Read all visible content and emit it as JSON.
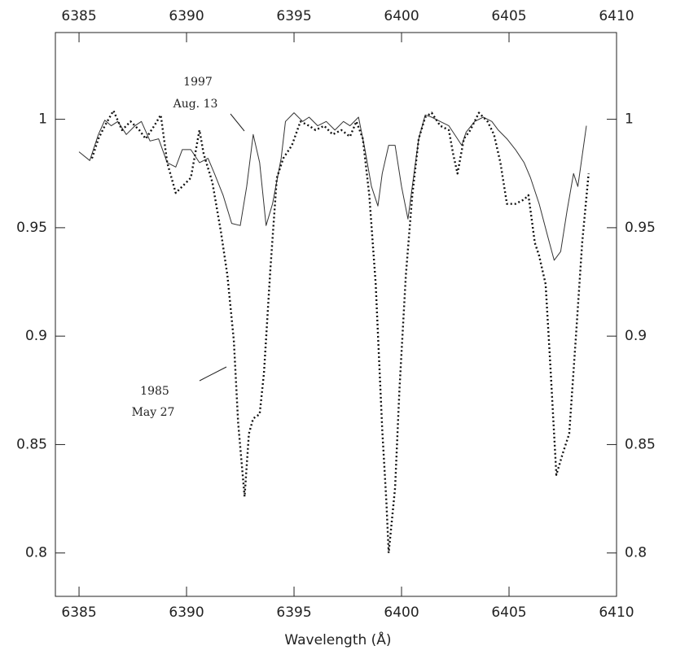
{
  "chart_data": {
    "type": "line",
    "xlabel": "Wavelength (Å)",
    "annotations": [
      "1997",
      "Aug. 13",
      "1985",
      "May 27"
    ],
    "xlim": [
      6383.9,
      6410
    ],
    "ylim": [
      0.78,
      1.04
    ],
    "xticks": [
      6385,
      6390,
      6395,
      6400,
      6405,
      6410
    ],
    "yticks": [
      0.8,
      0.85,
      0.9,
      0.95,
      1
    ],
    "series": [
      {
        "color": "#333333",
        "style": "solid",
        "x": [
          6385.0,
          6385.5,
          6385.9,
          6386.2,
          6386.5,
          6386.8,
          6387.2,
          6387.6,
          6387.9,
          6388.3,
          6388.7,
          6389.1,
          6389.5,
          6389.8,
          6390.2,
          6390.6,
          6391.0,
          6391.3,
          6391.7,
          6392.1,
          6392.5,
          6392.8,
          6393.1,
          6393.4,
          6393.7,
          6394.0,
          6394.4,
          6394.6,
          6395.0,
          6395.4,
          6395.7,
          6396.1,
          6396.5,
          6396.9,
          6397.3,
          6397.6,
          6398.0,
          6398.3,
          6398.6,
          6398.9,
          6399.1,
          6399.4,
          6399.7,
          6400.0,
          6400.3,
          6400.5,
          6400.8,
          6401.1,
          6401.4,
          6401.8,
          6402.2,
          6402.6,
          6402.8,
          6403.0,
          6403.4,
          6403.8,
          6404.2,
          6404.5,
          6404.9,
          6405.3,
          6405.7,
          6406.0,
          6406.4,
          6406.8,
          6407.1,
          6407.4,
          6407.7,
          6408.0,
          6408.2,
          6408.6
        ],
        "values": [
          0.985,
          0.981,
          0.993,
          0.9996,
          0.997,
          0.999,
          0.993,
          0.997,
          0.999,
          0.99,
          0.991,
          0.98,
          0.978,
          0.986,
          0.986,
          0.98,
          0.982,
          0.975,
          0.965,
          0.952,
          0.951,
          0.969,
          0.993,
          0.98,
          0.951,
          0.961,
          0.982,
          0.999,
          1.003,
          0.999,
          1.001,
          0.997,
          0.999,
          0.995,
          0.999,
          0.997,
          1.001,
          0.986,
          0.969,
          0.96,
          0.975,
          0.988,
          0.988,
          0.969,
          0.954,
          0.969,
          0.991,
          1.002,
          1.001,
          0.999,
          0.997,
          0.991,
          0.988,
          0.994,
          0.999,
          1.001,
          0.999,
          0.995,
          0.991,
          0.986,
          0.98,
          0.973,
          0.961,
          0.946,
          0.935,
          0.939,
          0.958,
          0.975,
          0.969,
          0.997
        ]
      },
      {
        "color": "#111111",
        "style": "dotted",
        "x": [
          6385.6,
          6385.9,
          6386.2,
          6386.6,
          6387.0,
          6387.4,
          6387.8,
          6388.1,
          6388.5,
          6388.8,
          6389.1,
          6389.5,
          6389.8,
          6390.2,
          6390.6,
          6390.8,
          6391.2,
          6391.6,
          6391.9,
          6392.2,
          6392.4,
          6392.7,
          6392.9,
          6393.1,
          6393.4,
          6393.6,
          6393.9,
          6394.2,
          6394.5,
          6394.9,
          6395.3,
          6395.7,
          6396.0,
          6396.4,
          6396.8,
          6397.2,
          6397.6,
          6397.9,
          6398.2,
          6398.5,
          6398.8,
          6399.1,
          6399.3,
          6399.4,
          6399.7,
          6399.9,
          6400.2,
          6400.5,
          6400.8,
          6401.1,
          6401.4,
          6401.8,
          6402.2,
          6402.4,
          6402.6,
          6402.9,
          6403.2,
          6403.6,
          6404.0,
          6404.3,
          6404.6,
          6404.9,
          6405.3,
          6405.7,
          6405.9,
          6406.2,
          6406.4,
          6406.7,
          6406.9,
          6407.2,
          6407.5,
          6407.8,
          6408.1,
          6408.4,
          6408.7
        ],
        "values": [
          0.982,
          0.991,
          0.997,
          1.004,
          0.995,
          0.999,
          0.995,
          0.991,
          0.997,
          1.002,
          0.98,
          0.966,
          0.969,
          0.973,
          0.995,
          0.984,
          0.971,
          0.948,
          0.928,
          0.898,
          0.86,
          0.826,
          0.855,
          0.862,
          0.864,
          0.883,
          0.931,
          0.973,
          0.982,
          0.988,
          0.999,
          0.997,
          0.995,
          0.997,
          0.993,
          0.995,
          0.992,
          0.999,
          0.991,
          0.965,
          0.924,
          0.857,
          0.823,
          0.8,
          0.83,
          0.875,
          0.928,
          0.965,
          0.991,
          1.001,
          1.003,
          0.997,
          0.995,
          0.984,
          0.975,
          0.991,
          0.995,
          1.003,
          0.999,
          0.993,
          0.98,
          0.961,
          0.961,
          0.963,
          0.965,
          0.943,
          0.937,
          0.924,
          0.89,
          0.836,
          0.846,
          0.855,
          0.898,
          0.943,
          0.975
        ]
      }
    ]
  }
}
